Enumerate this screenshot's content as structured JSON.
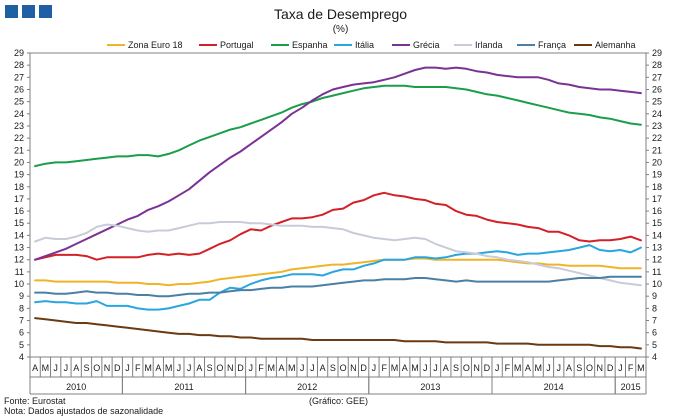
{
  "header": {
    "title": "Taxa de Desemprego",
    "unit": "(%)"
  },
  "footer": {
    "source": "Fonte: Eurostat",
    "note": "Nota: Dados ajustados de sazonalidade",
    "credit": "(Gráfico: GEE)"
  },
  "chart_data": {
    "type": "line",
    "ylim": [
      4,
      29
    ],
    "yticks": [
      4,
      5,
      6,
      7,
      8,
      9,
      10,
      11,
      12,
      13,
      14,
      15,
      16,
      17,
      18,
      19,
      20,
      21,
      22,
      23,
      24,
      25,
      26,
      27,
      28,
      29
    ],
    "grid": false,
    "legend_position": "top",
    "month_labels": [
      "A",
      "M",
      "J",
      "J",
      "A",
      "S",
      "O",
      "N",
      "D",
      "J",
      "F",
      "M",
      "A",
      "M",
      "J",
      "J",
      "A",
      "S",
      "O",
      "N",
      "D",
      "J",
      "F",
      "M",
      "A",
      "M",
      "J",
      "J",
      "A",
      "S",
      "O",
      "N",
      "D",
      "J",
      "F",
      "M",
      "A",
      "M",
      "J",
      "J",
      "A",
      "S",
      "O",
      "N",
      "D",
      "J",
      "F",
      "M",
      "A",
      "M",
      "J",
      "J",
      "A",
      "S",
      "O",
      "N",
      "D",
      "J",
      "F",
      "M"
    ],
    "year_labels": [
      {
        "label": "2010",
        "start": 0,
        "end": 9
      },
      {
        "label": "2011",
        "start": 9,
        "end": 21
      },
      {
        "label": "2012",
        "start": 21,
        "end": 33
      },
      {
        "label": "2013",
        "start": 33,
        "end": 45
      },
      {
        "label": "2014",
        "start": 45,
        "end": 57
      },
      {
        "label": "2015",
        "start": 57,
        "end": 60
      }
    ],
    "series": [
      {
        "name": "Zona Euro 18",
        "color": "#f0b429",
        "values": [
          10.3,
          10.3,
          10.2,
          10.2,
          10.2,
          10.2,
          10.2,
          10.2,
          10.1,
          10.1,
          10.1,
          10.0,
          10.0,
          9.9,
          10.0,
          10.0,
          10.1,
          10.2,
          10.4,
          10.5,
          10.6,
          10.7,
          10.8,
          10.9,
          11.0,
          11.2,
          11.3,
          11.4,
          11.5,
          11.6,
          11.6,
          11.7,
          11.8,
          11.9,
          12.0,
          12.0,
          12.0,
          12.1,
          12.1,
          12.0,
          12.0,
          12.0,
          12.0,
          12.0,
          12.0,
          12.0,
          11.9,
          11.8,
          11.7,
          11.7,
          11.6,
          11.6,
          11.5,
          11.5,
          11.5,
          11.5,
          11.4,
          11.3,
          11.3,
          11.3
        ]
      },
      {
        "name": "Portugal",
        "color": "#d42027",
        "values": [
          12.0,
          12.2,
          12.4,
          12.4,
          12.4,
          12.3,
          12.0,
          12.2,
          12.2,
          12.2,
          12.2,
          12.4,
          12.5,
          12.4,
          12.5,
          12.4,
          12.5,
          12.9,
          13.3,
          13.6,
          14.1,
          14.5,
          14.4,
          14.8,
          15.1,
          15.4,
          15.4,
          15.5,
          15.7,
          16.1,
          16.2,
          16.7,
          16.9,
          17.3,
          17.5,
          17.3,
          17.2,
          17.0,
          16.9,
          16.6,
          16.5,
          16.0,
          15.7,
          15.6,
          15.3,
          15.1,
          15.0,
          14.9,
          14.7,
          14.6,
          14.3,
          14.3,
          14.0,
          13.6,
          13.5,
          13.6,
          13.6,
          13.7,
          13.9,
          13.6
        ]
      },
      {
        "name": "Espanha",
        "color": "#1a9e4b",
        "values": [
          19.7,
          19.9,
          20.0,
          20.0,
          20.1,
          20.2,
          20.3,
          20.4,
          20.5,
          20.5,
          20.6,
          20.6,
          20.5,
          20.7,
          21.0,
          21.4,
          21.8,
          22.1,
          22.4,
          22.7,
          22.9,
          23.2,
          23.5,
          23.8,
          24.1,
          24.5,
          24.8,
          25.0,
          25.3,
          25.5,
          25.7,
          25.9,
          26.1,
          26.2,
          26.3,
          26.3,
          26.3,
          26.2,
          26.2,
          26.2,
          26.2,
          26.1,
          26.0,
          25.8,
          25.6,
          25.5,
          25.3,
          25.1,
          24.9,
          24.7,
          24.5,
          24.3,
          24.1,
          24.0,
          23.9,
          23.7,
          23.6,
          23.4,
          23.2,
          23.1
        ]
      },
      {
        "name": "Itália",
        "color": "#2aa6df",
        "values": [
          8.5,
          8.6,
          8.5,
          8.5,
          8.4,
          8.4,
          8.6,
          8.2,
          8.2,
          8.2,
          8.0,
          7.9,
          7.9,
          8.0,
          8.2,
          8.4,
          8.7,
          8.7,
          9.3,
          9.7,
          9.6,
          10.0,
          10.3,
          10.5,
          10.6,
          10.8,
          10.8,
          10.8,
          10.7,
          11.0,
          11.2,
          11.2,
          11.5,
          11.7,
          12.0,
          12.0,
          12.0,
          12.2,
          12.2,
          12.1,
          12.2,
          12.4,
          12.5,
          12.5,
          12.6,
          12.7,
          12.6,
          12.4,
          12.5,
          12.5,
          12.6,
          12.7,
          12.8,
          13.0,
          13.2,
          12.8,
          12.7,
          12.8,
          12.6,
          13.0
        ]
      },
      {
        "name": "Grécia",
        "color": "#7b3294",
        "values": [
          12.0,
          12.3,
          12.6,
          12.9,
          13.3,
          13.7,
          14.1,
          14.5,
          14.9,
          15.3,
          15.6,
          16.1,
          16.4,
          16.8,
          17.3,
          17.8,
          18.5,
          19.2,
          19.8,
          20.4,
          20.9,
          21.5,
          22.1,
          22.7,
          23.3,
          24.0,
          24.5,
          25.1,
          25.6,
          26.0,
          26.2,
          26.4,
          26.5,
          26.6,
          26.8,
          27.0,
          27.3,
          27.6,
          27.8,
          27.8,
          27.7,
          27.8,
          27.7,
          27.5,
          27.4,
          27.2,
          27.1,
          27.0,
          27.0,
          27.0,
          26.8,
          26.5,
          26.4,
          26.2,
          26.1,
          26.0,
          26.0,
          25.9,
          25.8,
          25.7
        ]
      },
      {
        "name": "Irlanda",
        "color": "#c8ccd8",
        "values": [
          13.5,
          13.8,
          13.7,
          13.7,
          13.9,
          14.2,
          14.7,
          14.9,
          14.8,
          14.6,
          14.4,
          14.3,
          14.4,
          14.4,
          14.6,
          14.8,
          15.0,
          15.0,
          15.1,
          15.1,
          15.1,
          15.0,
          15.0,
          14.9,
          14.8,
          14.8,
          14.8,
          14.7,
          14.7,
          14.6,
          14.5,
          14.2,
          14.0,
          13.8,
          13.7,
          13.6,
          13.7,
          13.8,
          13.7,
          13.3,
          13.0,
          12.7,
          12.6,
          12.5,
          12.3,
          12.2,
          12.0,
          11.9,
          11.8,
          11.6,
          11.4,
          11.3,
          11.1,
          10.9,
          10.7,
          10.5,
          10.3,
          10.1,
          10.0,
          9.9
        ]
      },
      {
        "name": "França",
        "color": "#4a7fa6",
        "values": [
          9.3,
          9.3,
          9.2,
          9.2,
          9.3,
          9.4,
          9.3,
          9.3,
          9.2,
          9.2,
          9.1,
          9.1,
          9.0,
          9.0,
          9.1,
          9.2,
          9.2,
          9.3,
          9.3,
          9.4,
          9.5,
          9.5,
          9.6,
          9.7,
          9.7,
          9.8,
          9.8,
          9.8,
          9.9,
          10.0,
          10.1,
          10.2,
          10.3,
          10.3,
          10.4,
          10.4,
          10.4,
          10.5,
          10.5,
          10.4,
          10.3,
          10.2,
          10.3,
          10.2,
          10.2,
          10.2,
          10.2,
          10.2,
          10.2,
          10.2,
          10.2,
          10.3,
          10.4,
          10.5,
          10.5,
          10.5,
          10.6,
          10.6,
          10.6,
          10.6
        ]
      },
      {
        "name": "Alemanha",
        "color": "#6b3a12",
        "values": [
          7.2,
          7.1,
          7.0,
          6.9,
          6.8,
          6.8,
          6.7,
          6.6,
          6.5,
          6.4,
          6.3,
          6.2,
          6.1,
          6.0,
          5.9,
          5.9,
          5.8,
          5.8,
          5.7,
          5.7,
          5.6,
          5.6,
          5.5,
          5.5,
          5.5,
          5.5,
          5.5,
          5.4,
          5.4,
          5.4,
          5.4,
          5.4,
          5.4,
          5.4,
          5.4,
          5.4,
          5.3,
          5.3,
          5.3,
          5.3,
          5.2,
          5.2,
          5.2,
          5.2,
          5.2,
          5.1,
          5.1,
          5.1,
          5.1,
          5.0,
          5.0,
          5.0,
          5.0,
          5.0,
          5.0,
          4.9,
          4.9,
          4.8,
          4.8,
          4.7
        ]
      }
    ]
  }
}
